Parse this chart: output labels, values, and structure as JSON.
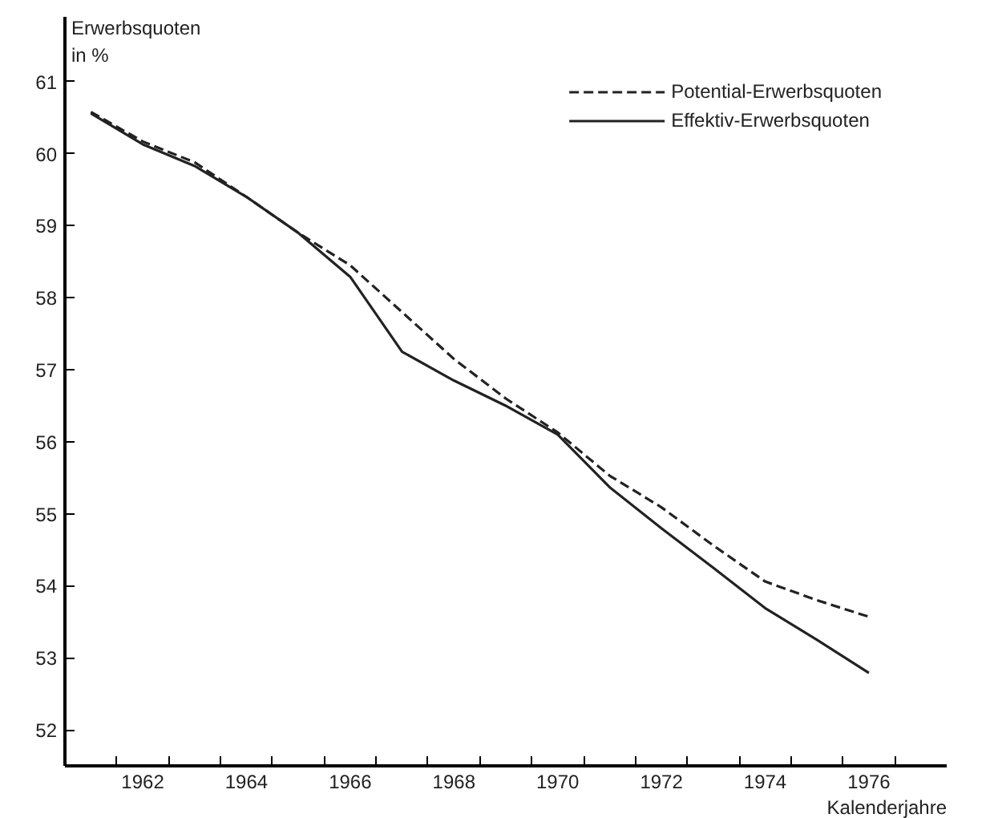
{
  "chart_data": {
    "type": "line",
    "ylabel": "Erwerbsquoten\nin %",
    "xlabel": "Kalenderjahre",
    "x": [
      1961,
      1962,
      1963,
      1964,
      1965,
      1966,
      1967,
      1968,
      1969,
      1970,
      1971,
      1972,
      1973,
      1974,
      1975,
      1976
    ],
    "series": [
      {
        "name": "Potential-Erwerbsquoten",
        "color": "#222222",
        "line_style": "dashed",
        "values": [
          60.58,
          60.17,
          59.88,
          59.4,
          58.9,
          58.45,
          57.8,
          57.15,
          56.6,
          56.13,
          55.53,
          55.09,
          54.56,
          54.06,
          53.8,
          53.57
        ]
      },
      {
        "name": "Effektiv-Erwerbsquoten",
        "color": "#222222",
        "line_style": "solid",
        "values": [
          60.56,
          60.13,
          59.83,
          59.4,
          58.9,
          58.29,
          57.25,
          56.85,
          56.5,
          56.1,
          55.37,
          54.8,
          54.25,
          53.69,
          53.25,
          52.79
        ]
      }
    ],
    "xlim": [
      1960.5,
      1977.5
    ],
    "ylim": [
      51.5,
      61.9
    ],
    "xticks": [
      {
        "value": 1961.5,
        "label": null
      },
      1962,
      {
        "value": 1962.5,
        "label": null
      },
      {
        "value": 1963.5,
        "label": null
      },
      1964,
      {
        "value": 1964.5,
        "label": null
      },
      {
        "value": 1965.5,
        "label": null
      },
      1966,
      {
        "value": 1966.5,
        "label": null
      },
      {
        "value": 1967.5,
        "label": null
      },
      1968,
      {
        "value": 1968.5,
        "label": null
      },
      {
        "value": 1969.5,
        "label": null
      },
      1970,
      {
        "value": 1970.5,
        "label": null
      },
      {
        "value": 1971.5,
        "label": null
      },
      1972,
      {
        "value": 1972.5,
        "label": null
      },
      {
        "value": 1973.5,
        "label": null
      },
      1974,
      {
        "value": 1974.5,
        "label": null
      },
      {
        "value": 1975.5,
        "label": null
      },
      1976,
      {
        "value": 1976.5,
        "label": null
      }
    ],
    "yticks": [
      52,
      53,
      54,
      55,
      56,
      57,
      58,
      59,
      60,
      61
    ],
    "grid": false,
    "legend": "top right",
    "marker": "none"
  }
}
